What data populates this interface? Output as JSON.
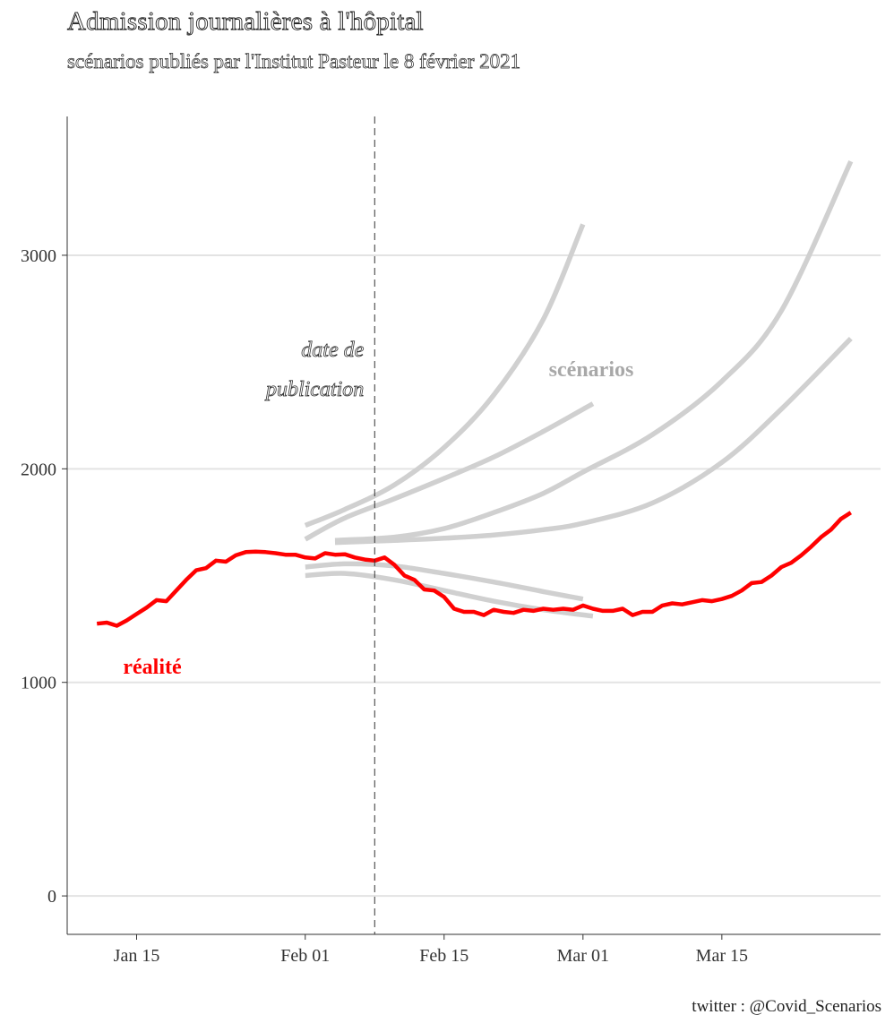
{
  "title": "Admission journalières à l'hôpital",
  "subtitle": "scénarios publiés par l'Institut Pasteur le 8 février 2021",
  "caption": "twitter : @Covid_Scenarios",
  "chart_data": {
    "type": "line",
    "x_type": "date",
    "xlim": [
      "2021-01-08",
      "2021-03-31"
    ],
    "ylim": [
      -180,
      3650
    ],
    "x_ticks": [
      {
        "date": "2021-01-15",
        "label": "Jan 15"
      },
      {
        "date": "2021-02-01",
        "label": "Feb 01"
      },
      {
        "date": "2021-02-15",
        "label": "Feb 15"
      },
      {
        "date": "2021-03-01",
        "label": "Mar 01"
      },
      {
        "date": "2021-03-15",
        "label": "Mar 15"
      }
    ],
    "y_ticks": [
      0,
      1000,
      2000,
      3000
    ],
    "grid": "horizontal",
    "colors": {
      "reality": "#ff0000",
      "scenarios": "#d0d0d0",
      "scenario_label": "#a8a8a8"
    },
    "annotations": {
      "publication_date": "2021-02-08",
      "publication_label_line1": "date de",
      "publication_label_line2": "publication",
      "scenarios_label": "scénarios",
      "reality_label": "réalité"
    },
    "series": [
      {
        "role": "reality",
        "points": [
          [
            "2021-01-11",
            1275
          ],
          [
            "2021-01-12",
            1280
          ],
          [
            "2021-01-13",
            1265
          ],
          [
            "2021-01-14",
            1290
          ],
          [
            "2021-01-15",
            1320
          ],
          [
            "2021-01-16",
            1350
          ],
          [
            "2021-01-17",
            1385
          ],
          [
            "2021-01-18",
            1380
          ],
          [
            "2021-01-19",
            1430
          ],
          [
            "2021-01-20",
            1480
          ],
          [
            "2021-01-21",
            1525
          ],
          [
            "2021-01-22",
            1535
          ],
          [
            "2021-01-23",
            1570
          ],
          [
            "2021-01-24",
            1565
          ],
          [
            "2021-01-25",
            1595
          ],
          [
            "2021-01-26",
            1610
          ],
          [
            "2021-01-27",
            1612
          ],
          [
            "2021-01-28",
            1610
          ],
          [
            "2021-01-29",
            1605
          ],
          [
            "2021-01-30",
            1598
          ],
          [
            "2021-01-31",
            1598
          ],
          [
            "2021-02-01",
            1585
          ],
          [
            "2021-02-02",
            1580
          ],
          [
            "2021-02-03",
            1605
          ],
          [
            "2021-02-04",
            1598
          ],
          [
            "2021-02-05",
            1600
          ],
          [
            "2021-02-06",
            1585
          ],
          [
            "2021-02-07",
            1575
          ],
          [
            "2021-02-08",
            1570
          ],
          [
            "2021-02-09",
            1585
          ],
          [
            "2021-02-10",
            1550
          ],
          [
            "2021-02-11",
            1500
          ],
          [
            "2021-02-12",
            1480
          ],
          [
            "2021-02-13",
            1435
          ],
          [
            "2021-02-14",
            1430
          ],
          [
            "2021-02-15",
            1400
          ],
          [
            "2021-02-16",
            1345
          ],
          [
            "2021-02-17",
            1330
          ],
          [
            "2021-02-18",
            1330
          ],
          [
            "2021-02-19",
            1315
          ],
          [
            "2021-02-20",
            1340
          ],
          [
            "2021-02-21",
            1330
          ],
          [
            "2021-02-22",
            1325
          ],
          [
            "2021-02-23",
            1340
          ],
          [
            "2021-02-24",
            1335
          ],
          [
            "2021-02-25",
            1345
          ],
          [
            "2021-02-26",
            1340
          ],
          [
            "2021-02-27",
            1345
          ],
          [
            "2021-02-28",
            1340
          ],
          [
            "2021-03-01",
            1360
          ],
          [
            "2021-03-02",
            1345
          ],
          [
            "2021-03-03",
            1335
          ],
          [
            "2021-03-04",
            1335
          ],
          [
            "2021-03-05",
            1345
          ],
          [
            "2021-03-06",
            1315
          ],
          [
            "2021-03-07",
            1330
          ],
          [
            "2021-03-08",
            1330
          ],
          [
            "2021-03-09",
            1360
          ],
          [
            "2021-03-10",
            1370
          ],
          [
            "2021-03-11",
            1365
          ],
          [
            "2021-03-12",
            1375
          ],
          [
            "2021-03-13",
            1385
          ],
          [
            "2021-03-14",
            1380
          ],
          [
            "2021-03-15",
            1390
          ],
          [
            "2021-03-16",
            1405
          ],
          [
            "2021-03-17",
            1430
          ],
          [
            "2021-03-18",
            1465
          ],
          [
            "2021-03-19",
            1470
          ],
          [
            "2021-03-20",
            1500
          ],
          [
            "2021-03-21",
            1540
          ],
          [
            "2021-03-22",
            1560
          ],
          [
            "2021-03-23",
            1595
          ],
          [
            "2021-03-24",
            1635
          ],
          [
            "2021-03-25",
            1680
          ],
          [
            "2021-03-26",
            1715
          ],
          [
            "2021-03-27",
            1765
          ],
          [
            "2021-03-28",
            1795
          ]
        ]
      },
      {
        "role": "scenario",
        "points": [
          [
            "2021-02-01",
            1735
          ],
          [
            "2021-02-05",
            1810
          ],
          [
            "2021-02-10",
            1925
          ],
          [
            "2021-02-15",
            2100
          ],
          [
            "2021-02-20",
            2345
          ],
          [
            "2021-02-25",
            2700
          ],
          [
            "2021-03-01",
            3145
          ]
        ]
      },
      {
        "role": "scenario",
        "points": [
          [
            "2021-02-01",
            1670
          ],
          [
            "2021-02-05",
            1770
          ],
          [
            "2021-02-10",
            1860
          ],
          [
            "2021-02-15",
            1955
          ],
          [
            "2021-02-20",
            2055
          ],
          [
            "2021-02-25",
            2175
          ],
          [
            "2021-03-02",
            2305
          ]
        ]
      },
      {
        "role": "scenario",
        "points": [
          [
            "2021-02-04",
            1665
          ],
          [
            "2021-02-10",
            1680
          ],
          [
            "2021-02-15",
            1720
          ],
          [
            "2021-02-20",
            1795
          ],
          [
            "2021-02-25",
            1885
          ],
          [
            "2021-03-01",
            1985
          ],
          [
            "2021-03-08",
            2160
          ],
          [
            "2021-03-15",
            2410
          ],
          [
            "2021-03-21",
            2740
          ],
          [
            "2021-03-28",
            3440
          ]
        ]
      },
      {
        "role": "scenario",
        "points": [
          [
            "2021-02-04",
            1655
          ],
          [
            "2021-02-10",
            1665
          ],
          [
            "2021-02-15",
            1675
          ],
          [
            "2021-02-20",
            1690
          ],
          [
            "2021-02-25",
            1715
          ],
          [
            "2021-03-01",
            1745
          ],
          [
            "2021-03-08",
            1840
          ],
          [
            "2021-03-15",
            2030
          ],
          [
            "2021-03-21",
            2280
          ],
          [
            "2021-03-28",
            2610
          ]
        ]
      },
      {
        "role": "scenario",
        "points": [
          [
            "2021-02-01",
            1540
          ],
          [
            "2021-02-05",
            1555
          ],
          [
            "2021-02-10",
            1545
          ],
          [
            "2021-02-15",
            1510
          ],
          [
            "2021-02-20",
            1470
          ],
          [
            "2021-02-25",
            1425
          ],
          [
            "2021-03-01",
            1390
          ]
        ]
      },
      {
        "role": "scenario",
        "points": [
          [
            "2021-02-01",
            1500
          ],
          [
            "2021-02-05",
            1510
          ],
          [
            "2021-02-10",
            1480
          ],
          [
            "2021-02-15",
            1430
          ],
          [
            "2021-02-20",
            1380
          ],
          [
            "2021-02-25",
            1340
          ],
          [
            "2021-03-02",
            1310
          ]
        ]
      }
    ]
  }
}
